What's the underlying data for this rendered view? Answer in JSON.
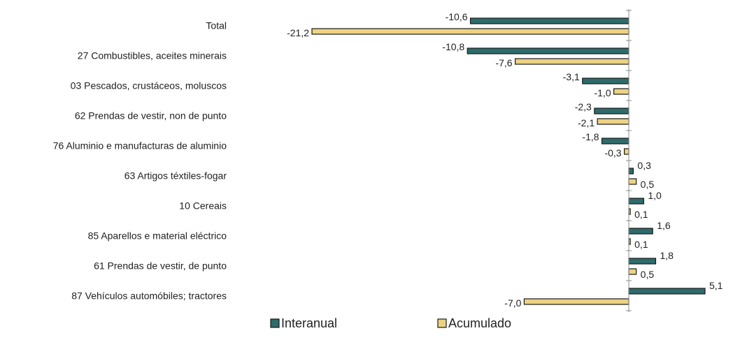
{
  "chart_data": {
    "type": "bar",
    "orientation": "horizontal",
    "categories": [
      "Total",
      "27 Combustibles, aceites minerais",
      "03 Pescados, crustáceos, moluscos",
      "62 Prendas de vestir, non de punto",
      "76 Aluminio e manufacturas de aluminio",
      "63 Artigos téxtiles-fogar",
      "10 Cereais",
      "85 Aparellos e material eléctrico",
      "61 Prendas de vestir, de punto",
      "87 Vehículos automóbiles; tractores"
    ],
    "series": [
      {
        "name": "Interanual",
        "color": "#2e6b6b",
        "values": [
          -10.6,
          -10.8,
          -3.1,
          -2.3,
          -1.8,
          0.3,
          1.0,
          1.6,
          1.8,
          5.1
        ],
        "labels": [
          "-10,6",
          "-10,8",
          "-3,1",
          "-2,3",
          "-1,8",
          "0,3",
          "1,0",
          "1,6",
          "1,8",
          "5,1"
        ]
      },
      {
        "name": "Acumulado",
        "color": "#ecd283",
        "values": [
          -21.2,
          -7.6,
          -1.0,
          -2.1,
          -0.3,
          0.5,
          0.1,
          0.1,
          0.5,
          -7.0
        ],
        "labels": [
          "-21,2",
          "-7,6",
          "-1,0",
          "-2,1",
          "-0,3",
          "0,5",
          "0,1",
          "0,1",
          "0,5",
          "-7,0"
        ]
      }
    ],
    "xlim": [
      -21.2,
      5.1
    ],
    "grid": false,
    "legend_position": "bottom"
  }
}
